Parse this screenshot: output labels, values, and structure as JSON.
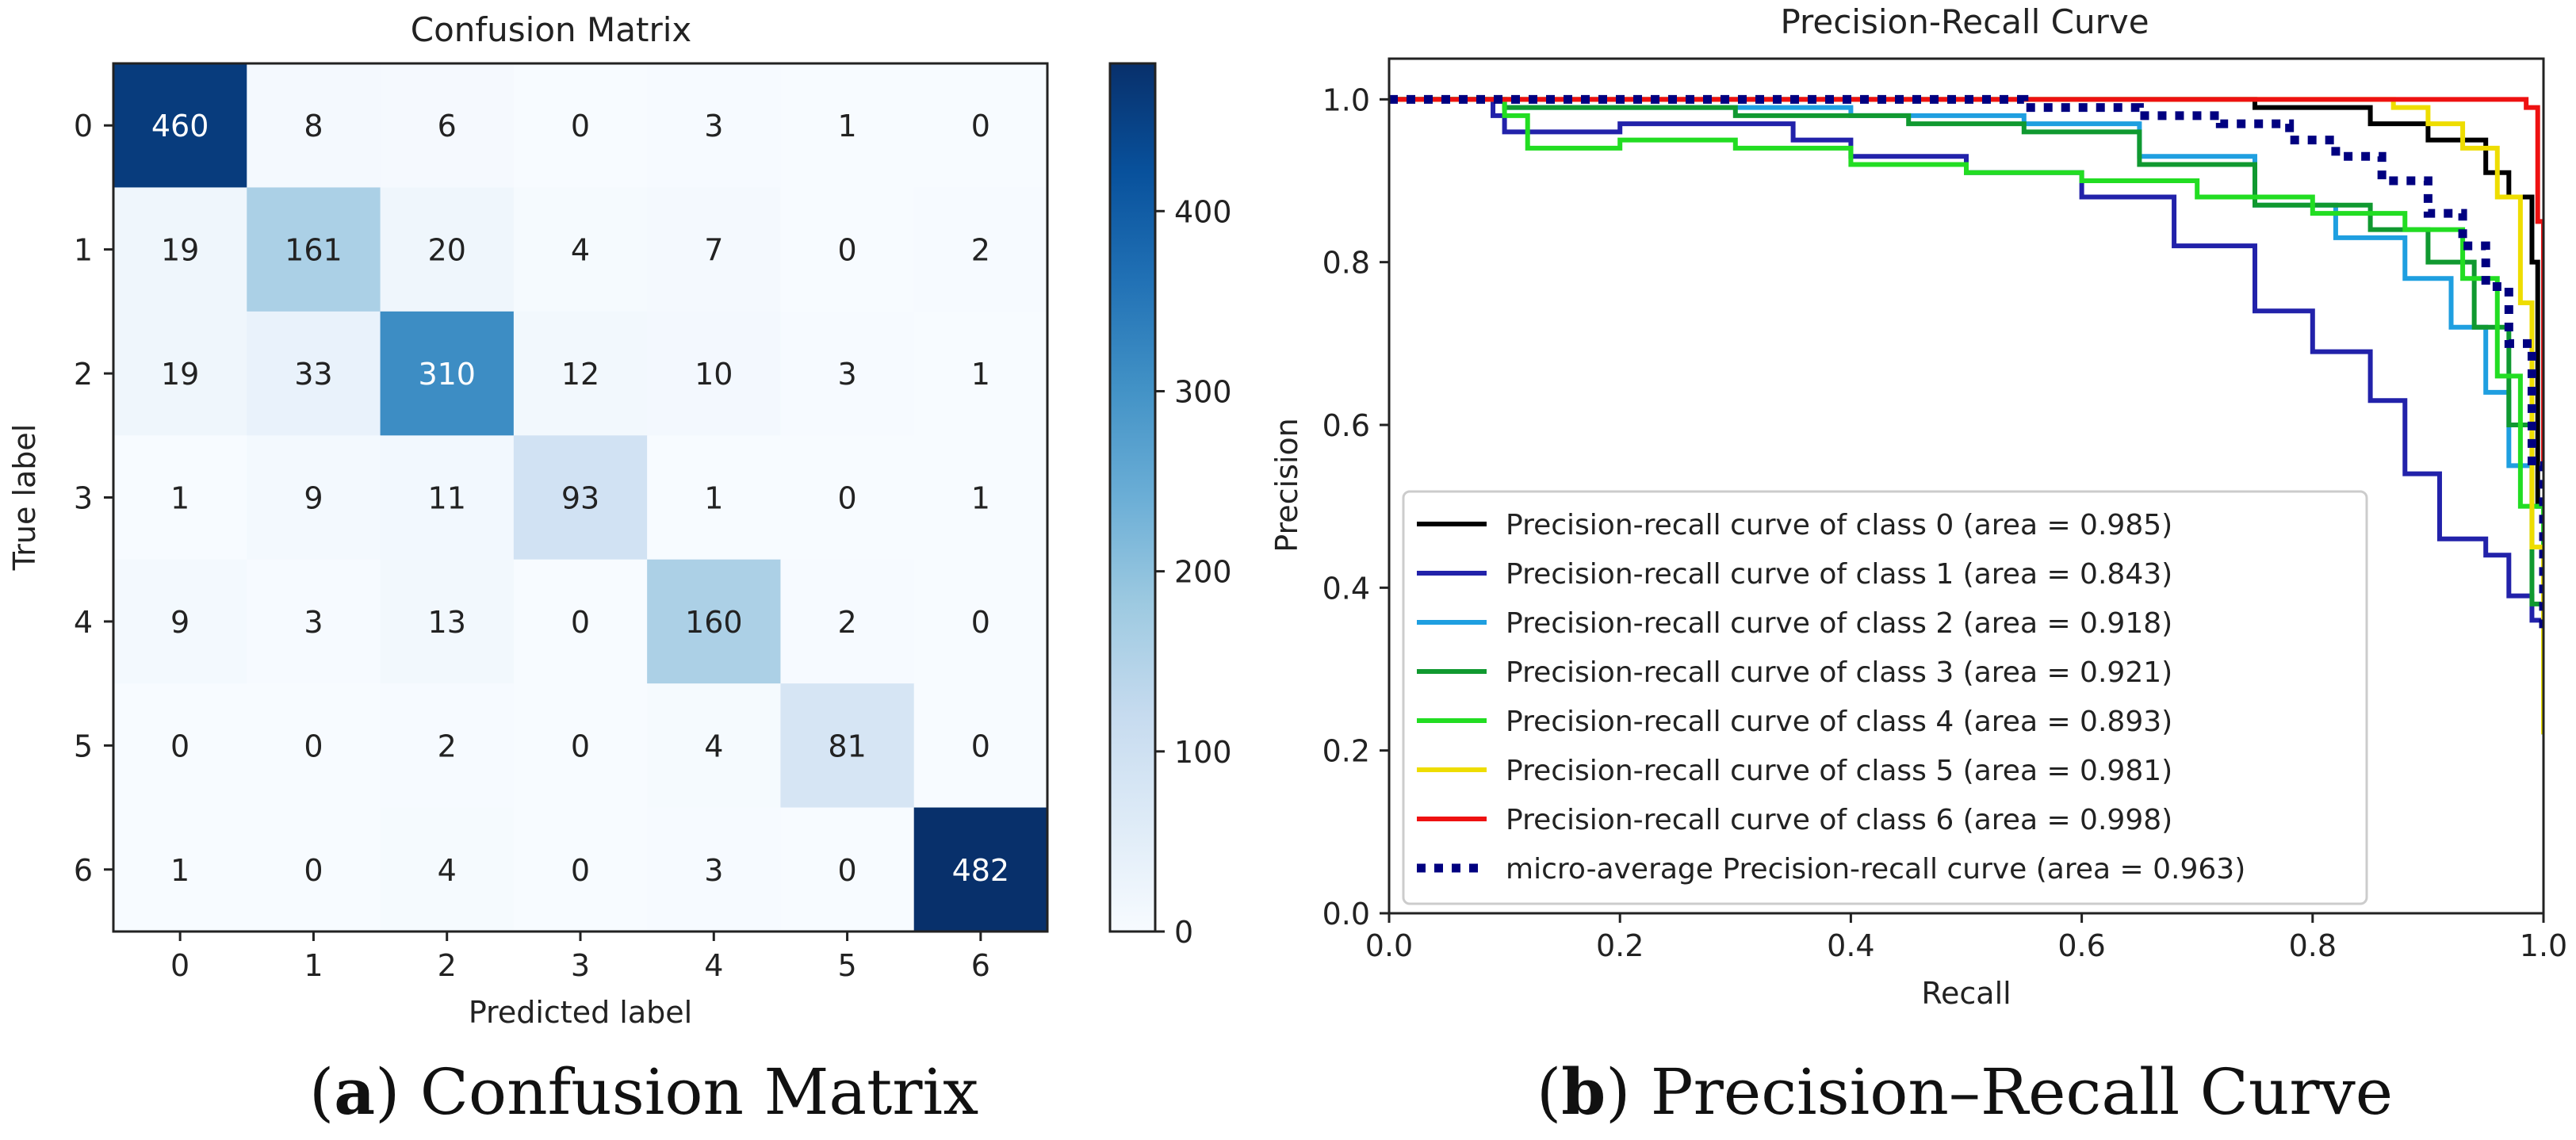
{
  "chart_data": [
    {
      "type": "heatmap",
      "title": "Confusion Matrix",
      "xlabel": "Predicted label",
      "ylabel": "True label",
      "x_categories": [
        "0",
        "1",
        "2",
        "3",
        "4",
        "5",
        "6"
      ],
      "y_categories": [
        "0",
        "1",
        "2",
        "3",
        "4",
        "5",
        "6"
      ],
      "matrix": [
        [
          460,
          8,
          6,
          0,
          3,
          1,
          0
        ],
        [
          19,
          161,
          20,
          4,
          7,
          0,
          2
        ],
        [
          19,
          33,
          310,
          12,
          10,
          3,
          1
        ],
        [
          1,
          9,
          11,
          93,
          1,
          0,
          1
        ],
        [
          9,
          3,
          13,
          0,
          160,
          2,
          0
        ],
        [
          0,
          0,
          2,
          0,
          4,
          81,
          0
        ],
        [
          1,
          0,
          4,
          0,
          3,
          0,
          482
        ]
      ],
      "colorbar": {
        "min": 0,
        "max": 482,
        "ticks": [
          0,
          100,
          200,
          300,
          400
        ],
        "colormap": "Blues"
      }
    },
    {
      "type": "line",
      "title": "Precision-Recall Curve",
      "xlabel": "Recall",
      "ylabel": "Precision",
      "xlim": [
        0.0,
        1.0
      ],
      "ylim": [
        0.0,
        1.05
      ],
      "xticks": [
        "0.0",
        "0.2",
        "0.4",
        "0.6",
        "0.8",
        "1.0"
      ],
      "yticks": [
        "0.0",
        "0.2",
        "0.4",
        "0.6",
        "0.8",
        "1.0"
      ],
      "legend_position": "lower-left",
      "series": [
        {
          "name": "Precision-recall curve of class 0 (area = 0.985)",
          "color": "#000000",
          "dash": "solid",
          "x": [
            0,
            0.6,
            0.75,
            0.85,
            0.9,
            0.95,
            0.97,
            0.99,
            0.995,
            1.0
          ],
          "y": [
            1.0,
            1.0,
            0.99,
            0.97,
            0.95,
            0.91,
            0.88,
            0.8,
            0.5,
            0.22
          ]
        },
        {
          "name": "Precision-recall curve of class 1 (area = 0.843)",
          "color": "#2222aa",
          "dash": "solid",
          "x": [
            0,
            0.05,
            0.09,
            0.1,
            0.2,
            0.35,
            0.4,
            0.5,
            0.6,
            0.68,
            0.75,
            0.8,
            0.85,
            0.88,
            0.91,
            0.95,
            0.97,
            0.99,
            1.0
          ],
          "y": [
            1.0,
            1.0,
            0.98,
            0.96,
            0.97,
            0.95,
            0.93,
            0.91,
            0.88,
            0.82,
            0.74,
            0.69,
            0.63,
            0.54,
            0.46,
            0.44,
            0.39,
            0.36,
            0.3
          ]
        },
        {
          "name": "Precision-recall curve of class 2 (area = 0.918)",
          "color": "#1f9fe0",
          "dash": "solid",
          "x": [
            0,
            0.1,
            0.2,
            0.4,
            0.55,
            0.65,
            0.75,
            0.82,
            0.88,
            0.92,
            0.95,
            0.97,
            0.99,
            1.0
          ],
          "y": [
            1.0,
            0.99,
            0.99,
            0.98,
            0.97,
            0.93,
            0.87,
            0.83,
            0.78,
            0.72,
            0.64,
            0.55,
            0.5,
            0.4
          ]
        },
        {
          "name": "Precision-recall curve of class 3 (area = 0.921)",
          "color": "#109930",
          "dash": "solid",
          "x": [
            0,
            0.1,
            0.3,
            0.45,
            0.55,
            0.65,
            0.75,
            0.85,
            0.9,
            0.94,
            0.97,
            0.99,
            1.0
          ],
          "y": [
            1.0,
            0.99,
            0.98,
            0.97,
            0.96,
            0.92,
            0.87,
            0.84,
            0.8,
            0.72,
            0.6,
            0.38,
            0.3
          ]
        },
        {
          "name": "Precision-recall curve of class 4 (area = 0.893)",
          "color": "#22dd22",
          "dash": "solid",
          "x": [
            0,
            0.1,
            0.12,
            0.2,
            0.3,
            0.4,
            0.5,
            0.6,
            0.7,
            0.8,
            0.88,
            0.93,
            0.96,
            0.98,
            1.0
          ],
          "y": [
            1.0,
            0.98,
            0.94,
            0.95,
            0.94,
            0.92,
            0.91,
            0.9,
            0.88,
            0.86,
            0.84,
            0.78,
            0.66,
            0.5,
            0.22
          ]
        },
        {
          "name": "Precision-recall curve of class 5 (area = 0.981)",
          "color": "#eedd00",
          "dash": "solid",
          "x": [
            0,
            0.8,
            0.87,
            0.9,
            0.93,
            0.96,
            0.98,
            0.99,
            1.0
          ],
          "y": [
            1.0,
            1.0,
            0.99,
            0.97,
            0.94,
            0.88,
            0.75,
            0.45,
            0.22
          ]
        },
        {
          "name": "Precision-recall curve of class 6 (area = 0.998)",
          "color": "#ee1111",
          "dash": "solid",
          "x": [
            0,
            0.5,
            0.9,
            0.97,
            0.985,
            0.995,
            1.0
          ],
          "y": [
            1.0,
            1.0,
            1.0,
            1.0,
            0.99,
            0.85,
            0.55
          ]
        },
        {
          "name": "micro-average Precision-recall curve (area = 0.963)",
          "color": "#000080",
          "dash": "dotted",
          "x": [
            0,
            0.4,
            0.55,
            0.65,
            0.72,
            0.78,
            0.82,
            0.86,
            0.9,
            0.93,
            0.95,
            0.97,
            0.99,
            1.0
          ],
          "y": [
            1.0,
            1.0,
            0.99,
            0.98,
            0.97,
            0.95,
            0.93,
            0.9,
            0.86,
            0.82,
            0.77,
            0.7,
            0.55,
            0.35
          ]
        }
      ]
    }
  ],
  "captions": {
    "a_letter": "a",
    "a_text": "Confusion Matrix",
    "b_letter": "b",
    "b_text": "Precision–Recall Curve"
  }
}
